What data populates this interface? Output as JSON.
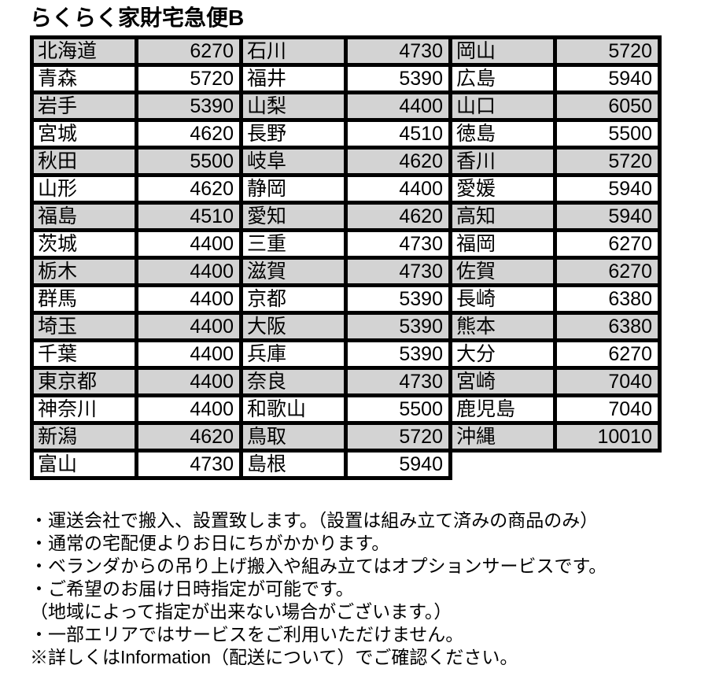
{
  "title": "らくらく家財宅急便B",
  "colors": {
    "row_shade": "#d3d3d3",
    "border": "#000000",
    "background": "#ffffff",
    "text": "#000000"
  },
  "table": {
    "columns": [
      {
        "rows": [
          {
            "name": "北海道",
            "price": "6270"
          },
          {
            "name": "青森",
            "price": "5720"
          },
          {
            "name": "岩手",
            "price": "5390"
          },
          {
            "name": "宮城",
            "price": "4620"
          },
          {
            "name": "秋田",
            "price": "5500"
          },
          {
            "name": "山形",
            "price": "4620"
          },
          {
            "name": "福島",
            "price": "4510"
          },
          {
            "name": "茨城",
            "price": "4400"
          },
          {
            "name": "栃木",
            "price": "4400"
          },
          {
            "name": "群馬",
            "price": "4400"
          },
          {
            "name": "埼玉",
            "price": "4400"
          },
          {
            "name": "千葉",
            "price": "4400"
          },
          {
            "name": "東京都",
            "price": "4400"
          },
          {
            "name": "神奈川",
            "price": "4400"
          },
          {
            "name": "新潟",
            "price": "4620"
          },
          {
            "name": "富山",
            "price": "4730"
          }
        ]
      },
      {
        "rows": [
          {
            "name": "石川",
            "price": "4730"
          },
          {
            "name": "福井",
            "price": "5390"
          },
          {
            "name": "山梨",
            "price": "4400"
          },
          {
            "name": "長野",
            "price": "4510"
          },
          {
            "name": "岐阜",
            "price": "4620"
          },
          {
            "name": "静岡",
            "price": "4400"
          },
          {
            "name": "愛知",
            "price": "4620"
          },
          {
            "name": "三重",
            "price": "4730"
          },
          {
            "name": "滋賀",
            "price": "4730"
          },
          {
            "name": "京都",
            "price": "5390"
          },
          {
            "name": "大阪",
            "price": "5390"
          },
          {
            "name": "兵庫",
            "price": "5390"
          },
          {
            "name": "奈良",
            "price": "4730"
          },
          {
            "name": "和歌山",
            "price": "5500"
          },
          {
            "name": "鳥取",
            "price": "5720"
          },
          {
            "name": "島根",
            "price": "5940"
          }
        ]
      },
      {
        "rows": [
          {
            "name": "岡山",
            "price": "5720"
          },
          {
            "name": "広島",
            "price": "5940"
          },
          {
            "name": "山口",
            "price": "6050"
          },
          {
            "name": "徳島",
            "price": "5500"
          },
          {
            "name": "香川",
            "price": "5720"
          },
          {
            "name": "愛媛",
            "price": "5940"
          },
          {
            "name": "高知",
            "price": "5940"
          },
          {
            "name": "福岡",
            "price": "6270"
          },
          {
            "name": "佐賀",
            "price": "6270"
          },
          {
            "name": "長崎",
            "price": "6380"
          },
          {
            "name": "熊本",
            "price": "6380"
          },
          {
            "name": "大分",
            "price": "6270"
          },
          {
            "name": "宮崎",
            "price": "7040"
          },
          {
            "name": "鹿児島",
            "price": "7040"
          },
          {
            "name": "沖縄",
            "price": "10010"
          }
        ]
      }
    ]
  },
  "notes": [
    "・運送会社で搬入、設置致します。（設置は組み立て済みの商品のみ）",
    "・通常の宅配便よりお日にちがかかります。",
    "・ベランダからの吊り上げ搬入や組み立てはオプションサービスです。",
    "・ご希望のお届け日時指定が可能です。",
    "（地域によって指定が出来ない場合がございます。）",
    "・一部エリアではサービスをご利用いただけません。",
    "※詳しくはInformation（配送について）でご確認ください。"
  ]
}
